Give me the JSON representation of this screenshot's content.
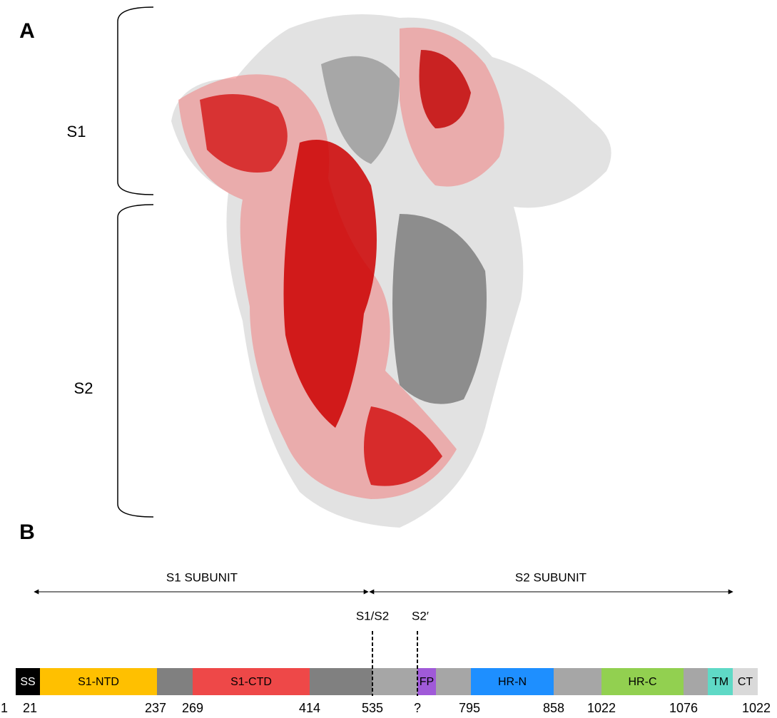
{
  "panel_a": {
    "label": "A",
    "braces": [
      "S1",
      "S2"
    ]
  },
  "panel_b": {
    "label": "B",
    "subunits": [
      "S1 SUBUNIT",
      "S2 SUBUNIT"
    ],
    "cleavage_sites": [
      "S1/S2",
      "S2′"
    ],
    "domains": [
      "SS",
      "S1-NTD",
      "S1-CTD",
      "FP",
      "HR-N",
      "HR-C",
      "TM",
      "CT"
    ],
    "positions": [
      "1",
      "21",
      "237",
      "269",
      "414",
      "535",
      "?",
      "795",
      "858",
      "1022",
      "1076",
      "1022"
    ]
  }
}
